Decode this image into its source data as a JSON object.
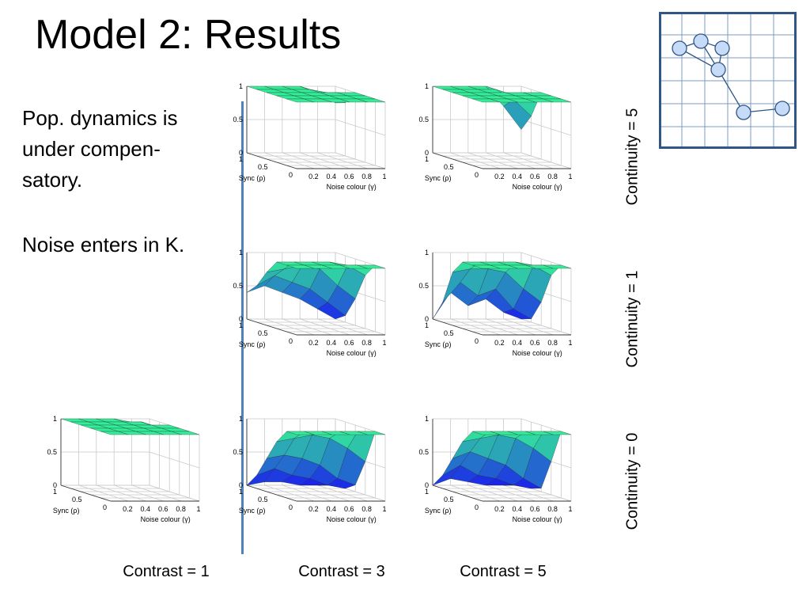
{
  "slide": {
    "title": "Model 2: Results",
    "body_lines": [
      "Pop. dynamics is",
      "under compen-",
      "satory."
    ],
    "note": "Noise enters in K."
  },
  "column_labels": [
    "Contrast = 1",
    "Contrast = 3",
    "Contrast = 5"
  ],
  "row_labels": [
    "Continuity = 5",
    "Continuity = 1",
    "Continuity = 0"
  ],
  "axes": {
    "x_label": "Noise colour (γ)",
    "y_label": "Sync (ρ)",
    "z_ticks": [
      "0",
      "0.5",
      "1"
    ],
    "x_ticks": [
      "0.2",
      "0.4",
      "0.6",
      "0.8",
      "1"
    ],
    "y_ticks": [
      "0",
      "0.5",
      "1"
    ]
  },
  "colors": {
    "accent_line": "#4f81bd",
    "surface_high": "#33ee99",
    "surface_low": "#1a1aee",
    "diagram_stroke": "#2f5686",
    "node_fill": "#c6dbf7"
  },
  "chart_data": [
    {
      "type": "surface",
      "panel": "contrast1-continuity0",
      "contrast": 1,
      "continuity": 0,
      "noise_colour": [
        0,
        0.2,
        0.4,
        0.6,
        0.8,
        1
      ],
      "sync": [
        0,
        0.2,
        0.4,
        0.6,
        0.8,
        1
      ],
      "z": [
        [
          1,
          1,
          1,
          1,
          1,
          1
        ],
        [
          1,
          1,
          1,
          1,
          1,
          1
        ],
        [
          1,
          1,
          1,
          1,
          1,
          1
        ],
        [
          1,
          1,
          1,
          1,
          1,
          1
        ],
        [
          1,
          1,
          1,
          1,
          1,
          0.9
        ],
        [
          1,
          1,
          1,
          1,
          0.95,
          0.85
        ]
      ],
      "zlim": [
        0,
        1
      ]
    },
    {
      "type": "surface",
      "panel": "contrast3-continuity5",
      "contrast": 3,
      "continuity": 5,
      "noise_colour": [
        0,
        0.2,
        0.4,
        0.6,
        0.8,
        1
      ],
      "sync": [
        0,
        0.2,
        0.4,
        0.6,
        0.8,
        1
      ],
      "z": [
        [
          1,
          1,
          1,
          1,
          1,
          1
        ],
        [
          1,
          1,
          1,
          1,
          1,
          1
        ],
        [
          1,
          1,
          1,
          1,
          1,
          1
        ],
        [
          1,
          1,
          1,
          1,
          1,
          1
        ],
        [
          1,
          1,
          1,
          1,
          0.95,
          0.8
        ],
        [
          1,
          1,
          1,
          1,
          0.9,
          0.75
        ]
      ],
      "zlim": [
        0,
        1
      ]
    },
    {
      "type": "surface",
      "panel": "contrast5-continuity5",
      "contrast": 5,
      "continuity": 5,
      "noise_colour": [
        0,
        0.2,
        0.4,
        0.6,
        0.8,
        1
      ],
      "sync": [
        0,
        0.2,
        0.4,
        0.6,
        0.8,
        1
      ],
      "z": [
        [
          1,
          1,
          1,
          1,
          1,
          1
        ],
        [
          1,
          1,
          1,
          1,
          1,
          1
        ],
        [
          1,
          1,
          1,
          1,
          1,
          1
        ],
        [
          1,
          1,
          1,
          1,
          1,
          1
        ],
        [
          1,
          1,
          1,
          1,
          0.85,
          0.6
        ],
        [
          1,
          1,
          1,
          1,
          0.7,
          0.35
        ]
      ],
      "zlim": [
        0,
        1
      ]
    },
    {
      "type": "surface",
      "panel": "contrast3-continuity1",
      "contrast": 3,
      "continuity": 1,
      "noise_colour": [
        0,
        0.2,
        0.4,
        0.6,
        0.8,
        1
      ],
      "sync": [
        0,
        0.2,
        0.4,
        0.6,
        0.8,
        1
      ],
      "z": [
        [
          1,
          1,
          1,
          1,
          1,
          1
        ],
        [
          1,
          1,
          1,
          1,
          1,
          1
        ],
        [
          1,
          1,
          1,
          1,
          0.95,
          0.8
        ],
        [
          0.8,
          0.85,
          0.9,
          0.85,
          0.6,
          0.4
        ],
        [
          0.55,
          0.7,
          0.6,
          0.5,
          0.3,
          0.1
        ],
        [
          0.4,
          0.5,
          0.4,
          0.3,
          0.15,
          0
        ]
      ],
      "zlim": [
        0,
        1
      ]
    },
    {
      "type": "surface",
      "panel": "contrast5-continuity1",
      "contrast": 5,
      "continuity": 1,
      "noise_colour": [
        0,
        0.2,
        0.4,
        0.6,
        0.8,
        1
      ],
      "sync": [
        0,
        0.2,
        0.4,
        0.6,
        0.8,
        1
      ],
      "z": [
        [
          1,
          1,
          1,
          1,
          1,
          1
        ],
        [
          1,
          1,
          1,
          1,
          1,
          1
        ],
        [
          1,
          1,
          1,
          1,
          0.95,
          0.8
        ],
        [
          0.8,
          0.85,
          0.85,
          0.8,
          0.55,
          0.35
        ],
        [
          0.3,
          0.6,
          0.4,
          0.5,
          0.2,
          0.05
        ],
        [
          0,
          0.4,
          0.2,
          0.3,
          0.1,
          0
        ]
      ],
      "zlim": [
        0,
        1
      ]
    },
    {
      "type": "surface",
      "panel": "contrast3-continuity0",
      "contrast": 3,
      "continuity": 0,
      "noise_colour": [
        0,
        0.2,
        0.4,
        0.6,
        0.8,
        1
      ],
      "sync": [
        0,
        0.2,
        0.4,
        0.6,
        0.8,
        1
      ],
      "z": [
        [
          1,
          1,
          1,
          1,
          1,
          1
        ],
        [
          1,
          1,
          1,
          1,
          1,
          1
        ],
        [
          0.8,
          0.85,
          0.9,
          0.85,
          0.7,
          0.5
        ],
        [
          0.5,
          0.55,
          0.5,
          0.4,
          0.2,
          0.1
        ],
        [
          0.2,
          0.3,
          0.2,
          0.15,
          0.05,
          0
        ],
        [
          0,
          0.05,
          0.05,
          0,
          0,
          0
        ]
      ],
      "zlim": [
        0,
        1
      ]
    },
    {
      "type": "surface",
      "panel": "contrast5-continuity0",
      "contrast": 5,
      "continuity": 0,
      "noise_colour": [
        0,
        0.2,
        0.4,
        0.6,
        0.8,
        1
      ],
      "sync": [
        0,
        0.2,
        0.4,
        0.6,
        0.8,
        1
      ],
      "z": [
        [
          1,
          1,
          1,
          1,
          1,
          1
        ],
        [
          1,
          1,
          1,
          1,
          1,
          1
        ],
        [
          0.8,
          0.85,
          0.9,
          0.85,
          0.7,
          0.5
        ],
        [
          0.5,
          0.6,
          0.5,
          0.4,
          0.2,
          0.05
        ],
        [
          0.2,
          0.35,
          0.2,
          0.15,
          0.05,
          0
        ],
        [
          0,
          0.1,
          0.05,
          0,
          0,
          0
        ]
      ],
      "zlim": [
        0,
        1
      ]
    }
  ]
}
